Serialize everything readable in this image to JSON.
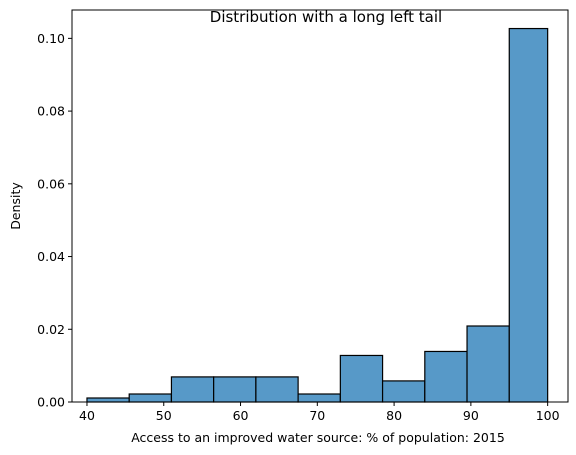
{
  "chart_data": {
    "type": "bar",
    "subtype": "histogram",
    "title": "Distribution with a long left tail",
    "xlabel": "Access to an improved water source: % of population: 2015",
    "ylabel": "Density",
    "xlim": [
      38.05,
      102.65
    ],
    "ylim": [
      0,
      0.1078
    ],
    "x_ticks": [
      40,
      50,
      60,
      70,
      80,
      90,
      100
    ],
    "y_ticks": [
      0.0,
      0.02,
      0.04,
      0.06,
      0.08,
      0.1
    ],
    "y_tick_labels": [
      "0.00",
      "0.02",
      "0.04",
      "0.06",
      "0.08",
      "0.10"
    ],
    "bins": [
      {
        "x0": 40.0,
        "x1": 45.5,
        "value": 0.0011
      },
      {
        "x0": 45.5,
        "x1": 51.0,
        "value": 0.0022
      },
      {
        "x0": 51.0,
        "x1": 56.5,
        "value": 0.0069
      },
      {
        "x0": 56.5,
        "x1": 62.0,
        "value": 0.0069
      },
      {
        "x0": 62.0,
        "x1": 67.5,
        "value": 0.0069
      },
      {
        "x0": 67.5,
        "x1": 73.0,
        "value": 0.0022
      },
      {
        "x0": 73.0,
        "x1": 78.5,
        "value": 0.0128
      },
      {
        "x0": 78.5,
        "x1": 84.0,
        "value": 0.0058
      },
      {
        "x0": 84.0,
        "x1": 89.5,
        "value": 0.0139
      },
      {
        "x0": 89.5,
        "x1": 95.0,
        "value": 0.0209
      },
      {
        "x0": 95.0,
        "x1": 100.0,
        "value": 0.1027
      }
    ],
    "bar_color": "#5799c8",
    "edge_color": "#000000",
    "grid": false,
    "legend": "none"
  }
}
